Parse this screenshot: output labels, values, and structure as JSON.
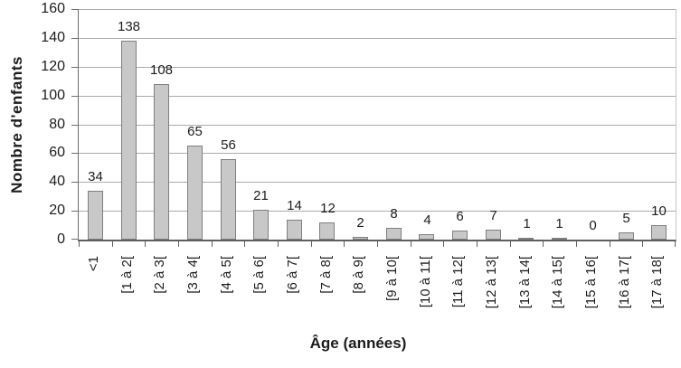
{
  "chart_data": {
    "type": "bar",
    "title": "",
    "categories": [
      "<1",
      "[1 à 2[",
      "[2 à 3[",
      "[3 à 4[",
      "[4 à 5[",
      "[5 à 6[",
      "[6 à 7[",
      "[7 à 8[",
      "[8 à 9[",
      "[9 à 10[",
      "[10 à 11[",
      "[11 à 12[",
      "[12 à 13[",
      "[13 à 14[",
      "[14 à 15[",
      "[15 à 16[",
      "[16 à 17[",
      "[17 à 18["
    ],
    "values": [
      34,
      138,
      108,
      65,
      56,
      21,
      14,
      12,
      2,
      8,
      4,
      6,
      7,
      1,
      1,
      0,
      5,
      10
    ],
    "xlabel": "Âge (années)",
    "ylabel": "Nombre d'enfants",
    "ylim": [
      0,
      160
    ],
    "yticks": [
      0,
      20,
      40,
      60,
      80,
      100,
      120,
      140,
      160
    ],
    "grid": true,
    "legend": false,
    "data_labels": true,
    "colors": {
      "bar_fill": "#c8c8c8",
      "bar_border": "#7f7f7f",
      "gridline": "#ababab",
      "axis": "#5f5f5f",
      "text": "#1c1c1c",
      "background": "#ffffff"
    }
  }
}
